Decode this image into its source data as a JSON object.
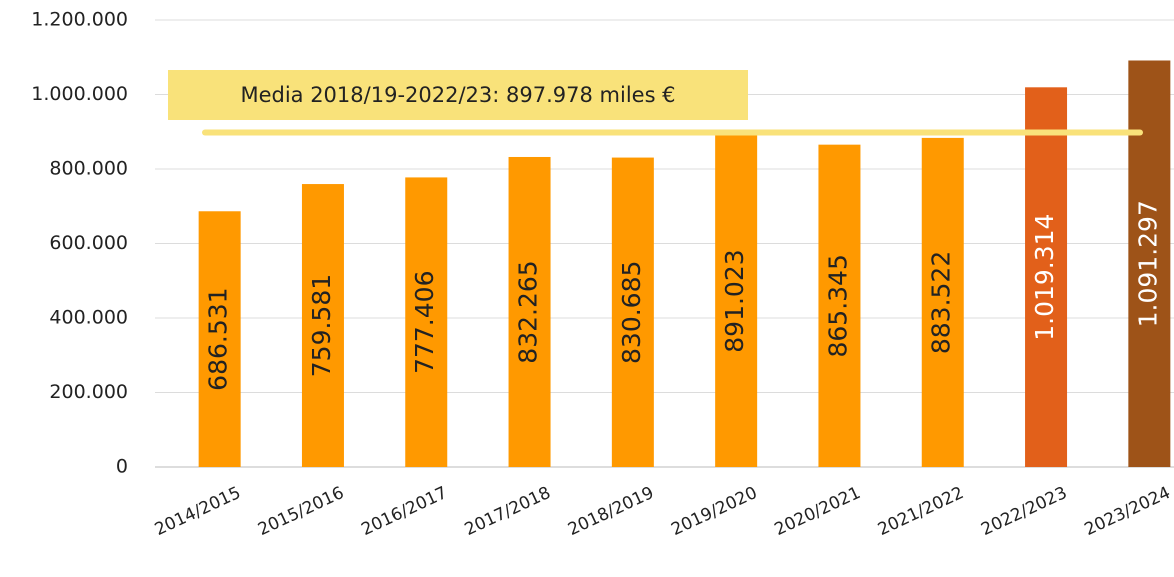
{
  "chart_data": {
    "type": "bar",
    "categories": [
      "2014/2015",
      "2015/2016",
      "2016/2017",
      "2017/2018",
      "2018/2019",
      "2019/2020",
      "2020/2021",
      "2021/2022",
      "2022/2023",
      "2023/2024"
    ],
    "values": [
      686531,
      759581,
      777406,
      832265,
      830685,
      891023,
      865345,
      883522,
      1019314,
      1091297
    ],
    "value_labels": [
      "686.531",
      "759.581",
      "777.406",
      "832.265",
      "830.685",
      "891.023",
      "865.345",
      "883.522",
      "1.019.314",
      "1.091.297"
    ],
    "colors": [
      "#ff9900",
      "#ff9900",
      "#ff9900",
      "#ff9900",
      "#ff9900",
      "#ff9900",
      "#ff9900",
      "#ff9900",
      "#e2601a",
      "#9e5318"
    ],
    "ylim": [
      0,
      1200000
    ],
    "yticks": [
      0,
      {
        "value": 200000,
        "label": "200.000"
      },
      {
        "value": 400000,
        "label": "400.000"
      },
      {
        "value": 600000,
        "label": "600.000"
      },
      {
        "value": 800000,
        "label": "800.000"
      },
      {
        "value": 1000000,
        "label": "1.000.000"
      },
      {
        "value": 1200000,
        "label": "1.200.000"
      }
    ],
    "grid": true,
    "average": {
      "value": 897978,
      "label": "Media 2018/19-2022/23: 897.978 miles €",
      "color": "#f9e27a"
    }
  }
}
